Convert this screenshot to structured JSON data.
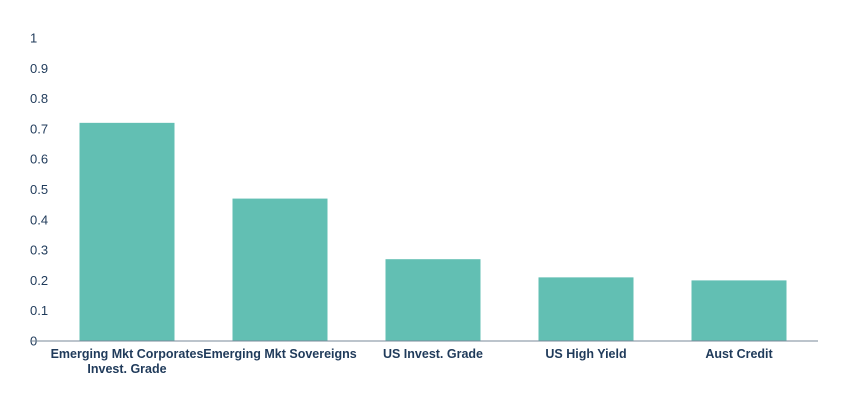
{
  "chart_data": {
    "type": "bar",
    "title": "",
    "xlabel": "",
    "ylabel": "",
    "categories": [
      "Emerging Mkt Corporates Invest. Grade",
      "Emerging Mkt Sovereigns",
      "US Invest. Grade",
      "US High Yield",
      "Aust Credit"
    ],
    "category_lines": [
      [
        "Emerging Mkt Corporates",
        "Invest. Grade"
      ],
      [
        "Emerging Mkt Sovereigns"
      ],
      [
        "US Invest. Grade"
      ],
      [
        "US High Yield"
      ],
      [
        "Aust Credit"
      ]
    ],
    "values": [
      0.72,
      0.47,
      0.27,
      0.21,
      0.2
    ],
    "ylim": [
      0,
      1
    ],
    "yticks": [
      "0",
      "0.1",
      "0.2",
      "0.3",
      "0.4",
      "0.5",
      "0.6",
      "0.7",
      "0.8",
      "0.9",
      "1"
    ],
    "grid": false,
    "legend": "none",
    "bar_color": "#62bfb3",
    "axis_color": "#7a8a99",
    "text_color": "#1f3a5a"
  }
}
